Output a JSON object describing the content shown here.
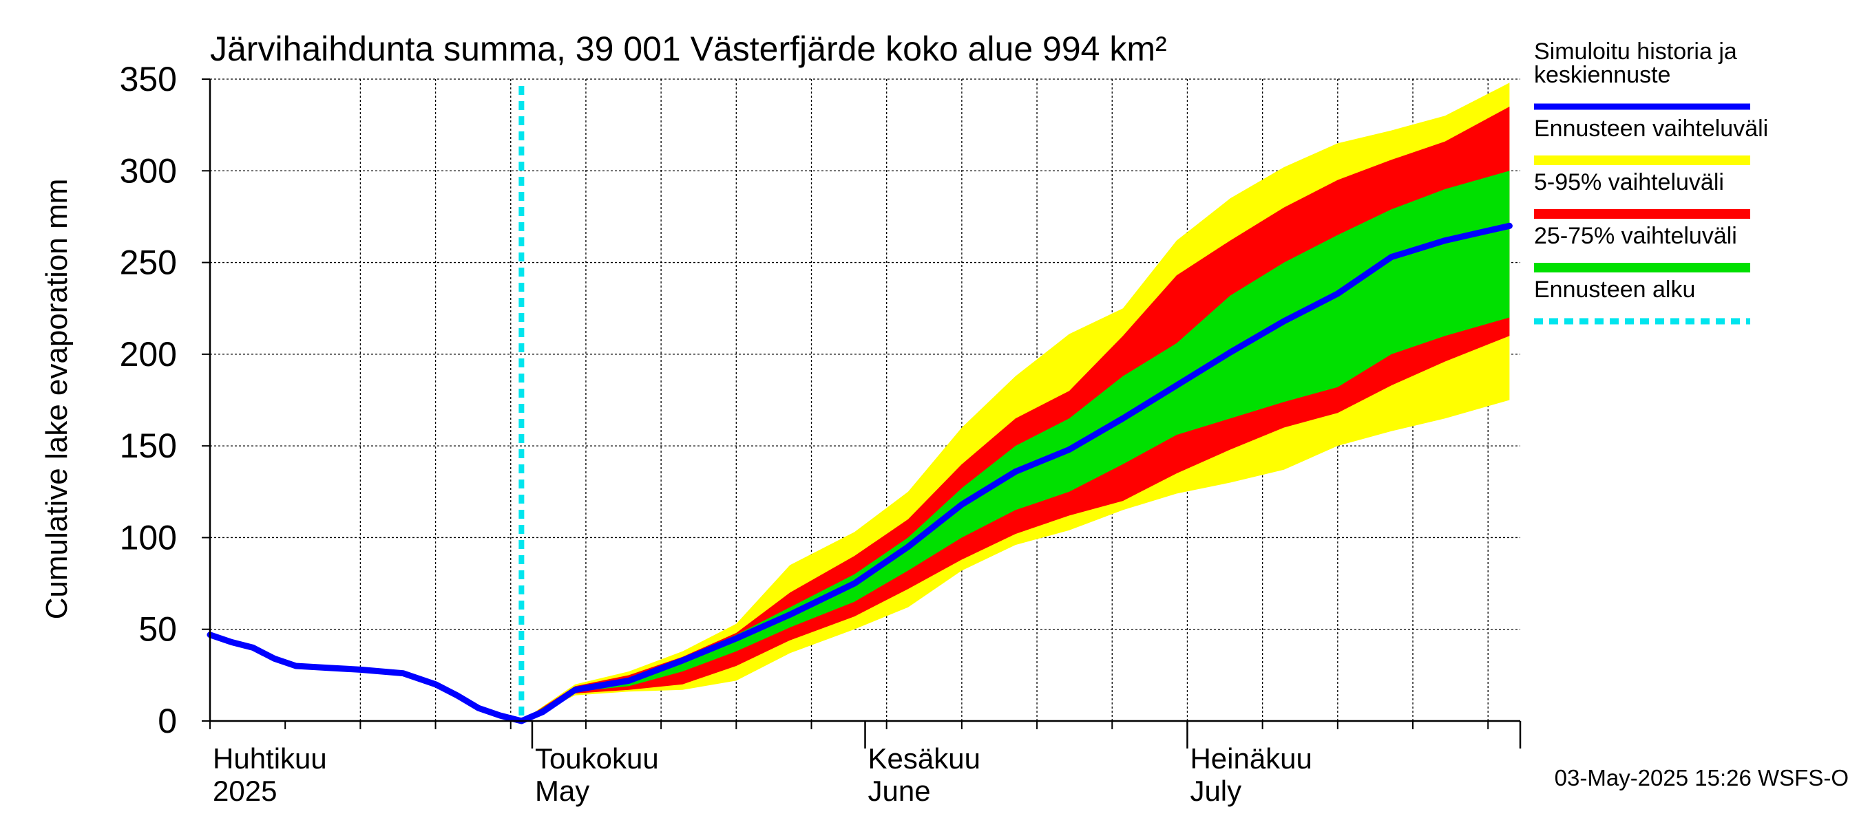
{
  "chart_data": {
    "type": "area",
    "title": "Järvihaihdunta summa, 39 001 Västerfjärde koko alue 994 km²",
    "ylabel": "Cumulative lake evaporation   mm",
    "xlabel": "",
    "ylim": [
      0,
      350
    ],
    "yticks": [
      0,
      50,
      100,
      150,
      200,
      250,
      300,
      350
    ],
    "grid": true,
    "x_range": [
      "2025-04-01",
      "2025-07-31"
    ],
    "month_labels": [
      {
        "date": "2025-04-01",
        "fi": "Huhtikuu",
        "en": "2025"
      },
      {
        "date": "2025-05-01",
        "fi": "Toukokuu",
        "en": "May"
      },
      {
        "date": "2025-06-01",
        "fi": "Kesäkuu",
        "en": "June"
      },
      {
        "date": "2025-07-01",
        "fi": "Heinäkuu",
        "en": "July"
      }
    ],
    "forecast_start": "2025-04-30",
    "footer": "03-May-2025 15:26 WSFS-O",
    "legend_position": "right",
    "legend": [
      {
        "label": "Simuloitu historia ja keskiennuste",
        "color": "#0000ff",
        "style": "line"
      },
      {
        "label": "Ennusteen vaihteluväli",
        "color": "#ffff00",
        "style": "band"
      },
      {
        "label": "5-95% vaihteluväli",
        "color": "#ff0000",
        "style": "band"
      },
      {
        "label": "25-75% vaihteluväli",
        "color": "#00e000",
        "style": "band"
      },
      {
        "label": "Ennusteen alku",
        "color": "#00e5ee",
        "style": "dotted"
      }
    ],
    "series": [
      {
        "name": "Simuloitu historia ja keskiennuste",
        "x": [
          "2025-04-01",
          "2025-04-03",
          "2025-04-05",
          "2025-04-07",
          "2025-04-09",
          "2025-04-12",
          "2025-04-15",
          "2025-04-19",
          "2025-04-22",
          "2025-04-24",
          "2025-04-26",
          "2025-04-28",
          "2025-04-30",
          "2025-05-02",
          "2025-05-05",
          "2025-05-10",
          "2025-05-15",
          "2025-05-20",
          "2025-05-25",
          "2025-05-31",
          "2025-06-05",
          "2025-06-10",
          "2025-06-15",
          "2025-06-20",
          "2025-06-25",
          "2025-06-30",
          "2025-07-05",
          "2025-07-10",
          "2025-07-15",
          "2025-07-20",
          "2025-07-25",
          "2025-07-31"
        ],
        "values": [
          47,
          43,
          40,
          34,
          30,
          29,
          28,
          26,
          20,
          14,
          7,
          3,
          0,
          5,
          17,
          22,
          33,
          45,
          58,
          75,
          95,
          118,
          136,
          148,
          165,
          183,
          201,
          218,
          233,
          253,
          262,
          270
        ]
      },
      {
        "name": "Ennusteen vaihteluväli",
        "x": [
          "2025-04-30",
          "2025-05-05",
          "2025-05-10",
          "2025-05-15",
          "2025-05-20",
          "2025-05-25",
          "2025-05-31",
          "2025-06-05",
          "2025-06-10",
          "2025-06-15",
          "2025-06-20",
          "2025-06-25",
          "2025-06-30",
          "2025-07-05",
          "2025-07-10",
          "2025-07-15",
          "2025-07-20",
          "2025-07-25",
          "2025-07-31"
        ],
        "upper": [
          0,
          20,
          27,
          38,
          53,
          85,
          103,
          125,
          160,
          188,
          211,
          225,
          262,
          285,
          302,
          315,
          322,
          330,
          348
        ],
        "lower": [
          0,
          14,
          16,
          17,
          22,
          37,
          50,
          62,
          82,
          96,
          104,
          115,
          124,
          130,
          137,
          150,
          158,
          165,
          175
        ]
      },
      {
        "name": "5-95% vaihteluväli",
        "x": [
          "2025-04-30",
          "2025-05-05",
          "2025-05-10",
          "2025-05-15",
          "2025-05-20",
          "2025-05-25",
          "2025-05-31",
          "2025-06-05",
          "2025-06-10",
          "2025-06-15",
          "2025-06-20",
          "2025-06-25",
          "2025-06-30",
          "2025-07-05",
          "2025-07-10",
          "2025-07-15",
          "2025-07-20",
          "2025-07-25",
          "2025-07-31"
        ],
        "upper": [
          0,
          19,
          25,
          35,
          48,
          70,
          90,
          110,
          140,
          165,
          180,
          210,
          243,
          262,
          280,
          295,
          306,
          316,
          335
        ],
        "lower": [
          0,
          15,
          17,
          20,
          30,
          44,
          57,
          72,
          88,
          102,
          112,
          120,
          135,
          148,
          160,
          168,
          183,
          196,
          210
        ]
      },
      {
        "name": "25-75% vaihteluväli",
        "x": [
          "2025-04-30",
          "2025-05-05",
          "2025-05-10",
          "2025-05-15",
          "2025-05-20",
          "2025-05-25",
          "2025-05-31",
          "2025-06-05",
          "2025-06-10",
          "2025-06-15",
          "2025-06-20",
          "2025-06-25",
          "2025-06-30",
          "2025-07-05",
          "2025-07-10",
          "2025-07-15",
          "2025-07-20",
          "2025-07-25",
          "2025-07-31"
        ],
        "upper": [
          0,
          18,
          23,
          34,
          47,
          62,
          80,
          100,
          127,
          150,
          165,
          188,
          206,
          232,
          250,
          265,
          279,
          290,
          300
        ],
        "lower": [
          0,
          16,
          19,
          27,
          38,
          51,
          65,
          82,
          100,
          115,
          125,
          140,
          156,
          165,
          174,
          182,
          200,
          210,
          220
        ]
      }
    ]
  }
}
